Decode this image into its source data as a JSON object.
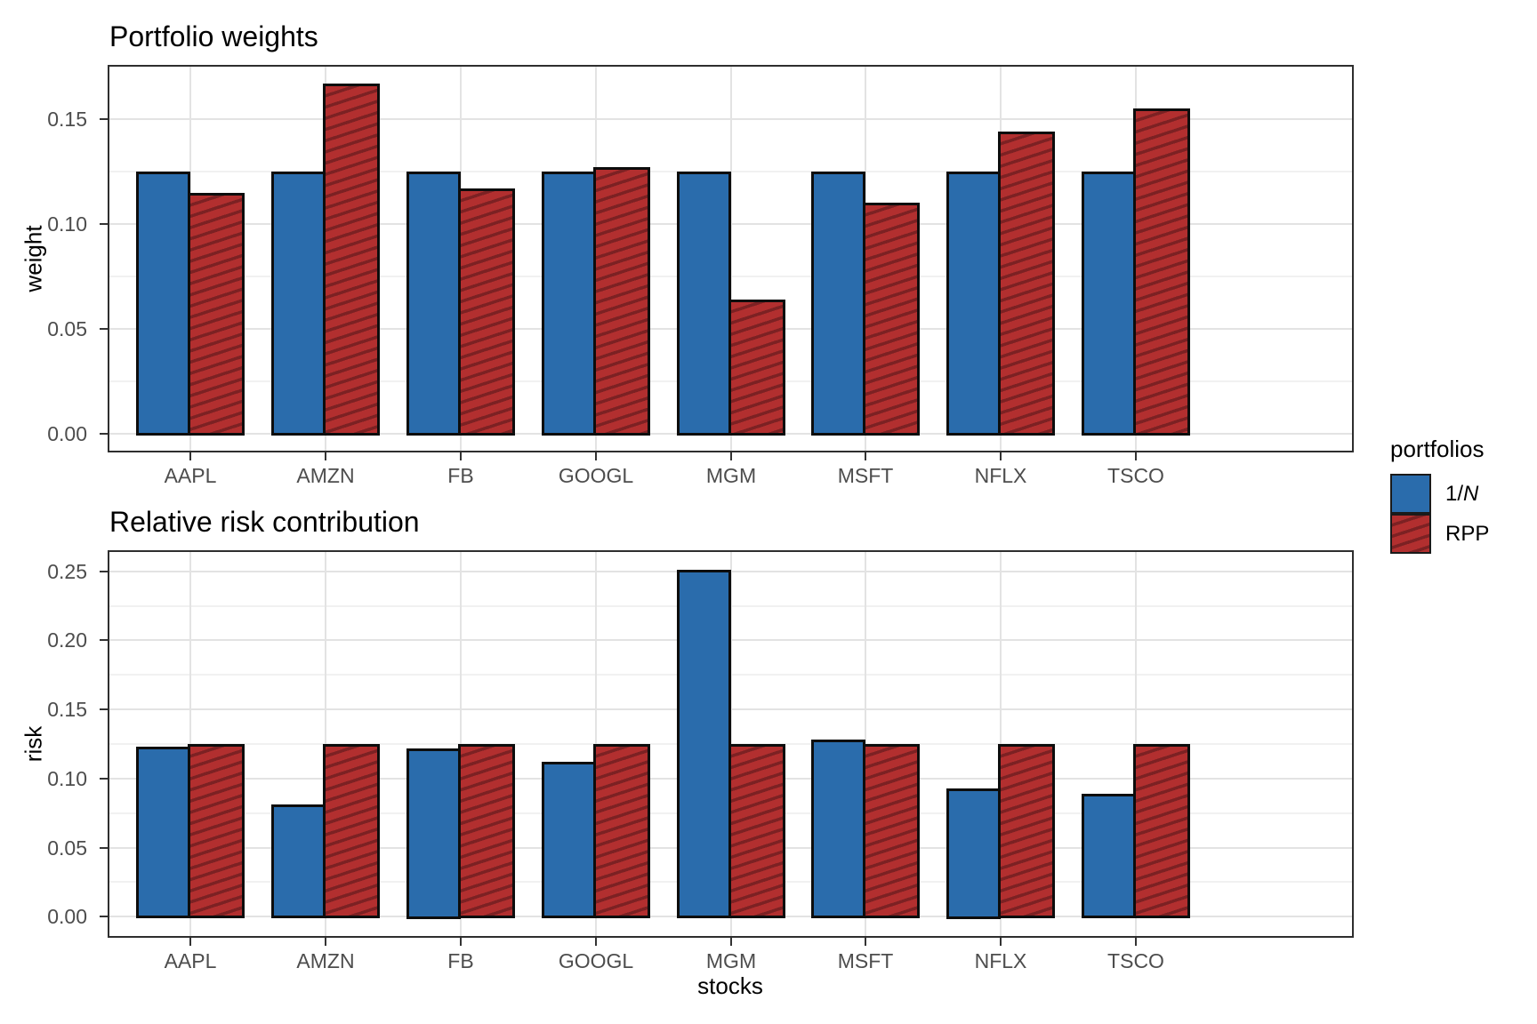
{
  "figure": {
    "background": "#ffffff",
    "legend": {
      "title": "portfolios",
      "items": [
        {
          "label_pre": "1/",
          "label_italic": "N",
          "series_key": "one-over-n"
        },
        {
          "label": "RPP",
          "series_key": "rpp"
        }
      ]
    },
    "colors": {
      "blue": "#2a6cac",
      "red": "#b22f2f",
      "hatch_line": "#7c2123",
      "bar_outline": "#0d0d0d",
      "grid_major": "#e3e3e3",
      "grid_minor": "#f1f1f1",
      "panel_border": "#2e2e2e",
      "tick_text": "#4d4d4d"
    }
  },
  "chart_data": [
    {
      "type": "bar",
      "title": "Portfolio weights",
      "xlabel": "",
      "ylabel": "weight",
      "categories": [
        "AAPL",
        "AMZN",
        "FB",
        "GOOGL",
        "MGM",
        "MSFT",
        "NFLX",
        "TSCO"
      ],
      "series": [
        {
          "name": "1/N",
          "color": "#2a6cac",
          "pattern": "solid",
          "values": [
            0.125,
            0.125,
            0.125,
            0.125,
            0.125,
            0.125,
            0.125,
            0.125
          ]
        },
        {
          "name": "RPP",
          "color": "#b22f2f",
          "pattern": "diagonal-hatch",
          "values": [
            0.115,
            0.167,
            0.117,
            0.127,
            0.064,
            0.11,
            0.144,
            0.155
          ]
        }
      ],
      "ylim": [
        -0.008,
        0.175
      ],
      "yticks": [
        0,
        0.05,
        0.1,
        0.15
      ],
      "ytick_labels": [
        "0.00",
        "0.05",
        "0.10",
        "0.15"
      ],
      "minor_yticks": [
        0.025,
        0.075,
        0.125
      ],
      "grid": true,
      "legend_position": "right"
    },
    {
      "type": "bar",
      "title": "Relative risk contribution",
      "xlabel": "stocks",
      "ylabel": "risk",
      "categories": [
        "AAPL",
        "AMZN",
        "FB",
        "GOOGL",
        "MGM",
        "MSFT",
        "NFLX",
        "TSCO"
      ],
      "series": [
        {
          "name": "1/N",
          "color": "#2a6cac",
          "pattern": "solid",
          "values": [
            0.123,
            0.081,
            0.122,
            0.112,
            0.251,
            0.128,
            0.093,
            0.089
          ]
        },
        {
          "name": "RPP",
          "color": "#b22f2f",
          "pattern": "diagonal-hatch",
          "values": [
            0.125,
            0.125,
            0.125,
            0.125,
            0.125,
            0.125,
            0.125,
            0.125
          ]
        }
      ],
      "ylim": [
        -0.014,
        0.264
      ],
      "yticks": [
        0,
        0.05,
        0.1,
        0.15,
        0.2,
        0.25
      ],
      "ytick_labels": [
        "0.00",
        "0.05",
        "0.10",
        "0.15",
        "0.20",
        "0.25"
      ],
      "minor_yticks": [
        0.025,
        0.075,
        0.125,
        0.175,
        0.225
      ],
      "grid": true,
      "legend_position": "right"
    }
  ]
}
